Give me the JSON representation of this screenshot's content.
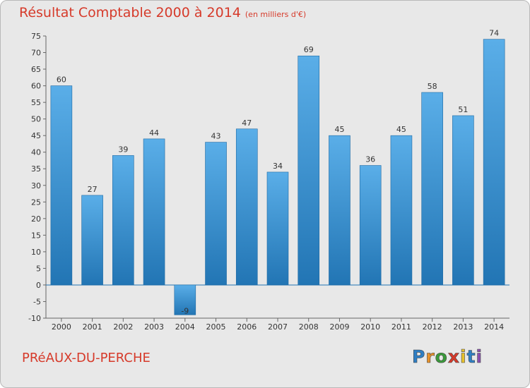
{
  "header": {
    "title": "Résultat Comptable 2000 à 2014",
    "unit": "(en milliers d'€)"
  },
  "footer": {
    "commune": "PRéAUX-DU-PERCHE",
    "logo": {
      "text": "Proxiti",
      "letters": [
        "P",
        "r",
        "o",
        "x",
        "i",
        "t",
        "i"
      ],
      "colors": [
        "#2f7fc4",
        "#e8922a",
        "#3a9a3a",
        "#d63a2a",
        "#e8c22a",
        "#2f7fc4",
        "#8a4fb0"
      ]
    }
  },
  "colors": {
    "bar_top": "#5aaee8",
    "bar_bottom": "#2275b4",
    "zero_line": "#2275b4",
    "text_accent": "#d63a2a"
  },
  "chart_data": {
    "type": "bar",
    "title": "Résultat Comptable 2000 à 2014",
    "ylabel": "en milliers d'€",
    "categories": [
      "2000",
      "2001",
      "2002",
      "2003",
      "2004",
      "2005",
      "2006",
      "2007",
      "2008",
      "2009",
      "2010",
      "2011",
      "2012",
      "2013",
      "2014"
    ],
    "values": [
      60,
      27,
      39,
      44,
      -9,
      43,
      47,
      34,
      69,
      45,
      36,
      45,
      58,
      51,
      74
    ],
    "labels": [
      "60",
      "27",
      "39",
      "44",
      "-9",
      "43",
      "47",
      "34",
      "69",
      "45",
      "36",
      "45",
      "58",
      "51",
      "74"
    ],
    "ylim": [
      -10,
      75
    ],
    "yticks": [
      -10,
      -5,
      0,
      5,
      10,
      15,
      20,
      25,
      30,
      35,
      40,
      45,
      50,
      55,
      60,
      65,
      70,
      75
    ],
    "grid": false
  }
}
